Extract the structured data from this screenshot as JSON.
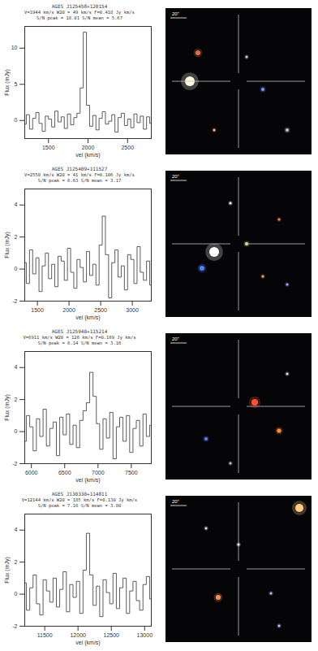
{
  "chart_data": [
    {
      "type": "line",
      "title": "AGES J125458+120154",
      "subtitle": [
        "V=1944 km/s W20 = 49 km/s F=0.418 Jy km/s",
        "S/N peak = 18.01 S/N mean = 5.67"
      ],
      "x_label": "vel (km/s)",
      "y_label": "Flux (mJy)",
      "color": "#333333",
      "line_style": "step",
      "annotations": [
        "20\""
      ],
      "x": [
        1200,
        1240,
        1280,
        1320,
        1360,
        1400,
        1440,
        1480,
        1520,
        1560,
        1600,
        1640,
        1680,
        1720,
        1760,
        1800,
        1840,
        1880,
        1920,
        1960,
        2000,
        2040,
        2080,
        2120,
        2160,
        2200,
        2240,
        2280,
        2320,
        2360,
        2400,
        2440,
        2480,
        2520,
        2560,
        2600,
        2640,
        2680,
        2720,
        2760,
        2800
      ],
      "values": [
        -0.5,
        0.8,
        -1.2,
        0.3,
        1.1,
        -0.4,
        -1.5,
        0.6,
        0.2,
        -0.9,
        1.3,
        -0.2,
        0.5,
        -1.1,
        0.9,
        -0.6,
        0.4,
        1.0,
        4.5,
        12.2,
        2.1,
        -0.8,
        0.7,
        -1.3,
        0.3,
        1.2,
        -0.5,
        -0.1,
        0.8,
        -1.6,
        0.4,
        1.0,
        -0.7,
        0.2,
        -1.0,
        0.9,
        -0.3,
        0.6,
        -1.2,
        0.5,
        -0.4
      ],
      "xlim": [
        1200,
        2800
      ],
      "xticks": [
        1500,
        2000,
        2500
      ],
      "ylim": [
        -2.5,
        13
      ],
      "yticks": [
        0,
        5,
        10
      ],
      "grid": false
    },
    {
      "type": "line",
      "title": "AGES J125409+111527",
      "subtitle": [
        "V=2550 km/s W20 = 41 km/s F=0.106 Jy km/s",
        "S/N peak = 6.63 S/N mean = 3.17"
      ],
      "x_label": "vel (km/s)",
      "y_label": "Flux (mJy)",
      "color": "#333333",
      "line_style": "step",
      "annotations": [
        "20\""
      ],
      "x": [
        1300,
        1350,
        1400,
        1450,
        1500,
        1550,
        1600,
        1650,
        1700,
        1750,
        1800,
        1850,
        1900,
        1950,
        2000,
        2050,
        2100,
        2150,
        2200,
        2250,
        2300,
        2350,
        2400,
        2450,
        2500,
        2550,
        2600,
        2650,
        2700,
        2750,
        2800,
        2850,
        2900,
        2950,
        3000,
        3050,
        3100,
        3150,
        3200,
        3250,
        3300
      ],
      "values": [
        0.4,
        -0.9,
        1.2,
        -0.3,
        0.7,
        -1.4,
        0.2,
        1.0,
        -0.6,
        0.3,
        -1.1,
        0.8,
        0.5,
        -0.7,
        1.3,
        -0.2,
        -1.2,
        0.6,
        0.1,
        -0.8,
        1.1,
        -0.4,
        0.3,
        -1.0,
        1.5,
        3.3,
        0.9,
        -1.8,
        0.4,
        1.2,
        -0.5,
        0.2,
        -1.3,
        0.9,
        0.6,
        -0.9,
        1.4,
        -0.2,
        -0.7,
        0.5,
        -1.0
      ],
      "xlim": [
        1300,
        3300
      ],
      "xticks": [
        1500,
        2000,
        2500,
        3000
      ],
      "ylim": [
        -2,
        5
      ],
      "yticks": [
        -2,
        0,
        2,
        4
      ],
      "grid": false
    },
    {
      "type": "line",
      "title": "AGES J125940+115214",
      "subtitle": [
        "V=6911 km/s W20 = 126 km/s F=0.169 Jy km/s",
        "S/N peak = 6.14 S/N mean = 3.16"
      ],
      "x_label": "vel (km/s)",
      "y_label": "Flux (mJy)",
      "color": "#333333",
      "line_style": "step",
      "annotations": [
        "20\""
      ],
      "x": [
        5900,
        5950,
        6000,
        6050,
        6100,
        6150,
        6200,
        6250,
        6300,
        6350,
        6400,
        6450,
        6500,
        6550,
        6600,
        6650,
        6700,
        6750,
        6800,
        6850,
        6900,
        6950,
        7000,
        7050,
        7100,
        7150,
        7200,
        7250,
        7300,
        7350,
        7400,
        7450,
        7500,
        7550,
        7600,
        7650,
        7700,
        7750,
        7800
      ],
      "values": [
        -0.6,
        1.0,
        0.3,
        -1.2,
        0.8,
        -0.3,
        1.4,
        -0.9,
        0.2,
        0.6,
        -1.5,
        0.9,
        -0.2,
        1.1,
        -0.8,
        0.4,
        -1.0,
        0.7,
        1.3,
        1.8,
        3.7,
        2.2,
        0.5,
        -1.1,
        0.8,
        -0.4,
        1.2,
        -1.7,
        0.3,
        0.9,
        -0.6,
        1.0,
        -1.3,
        0.2,
        0.7,
        -0.9,
        1.1,
        -0.3,
        0.4
      ],
      "xlim": [
        5900,
        7800
      ],
      "xticks": [
        6000,
        6500,
        7000,
        7500
      ],
      "ylim": [
        -2,
        5
      ],
      "yticks": [
        -2,
        0,
        2,
        4
      ],
      "grid": false
    },
    {
      "type": "line",
      "title": "AGES J130330+114811",
      "subtitle": [
        "V=12144 km/s W20 = 185 km/s F=0.130 Jy km/s",
        "S/N peak = 7.16 S/N mean = 3.80"
      ],
      "x_label": "vel (km/s)",
      "y_label": "Flux (mJy)",
      "color": "#333333",
      "line_style": "step",
      "annotations": [
        "20\""
      ],
      "x": [
        11200,
        11250,
        11300,
        11350,
        11400,
        11450,
        11500,
        11550,
        11600,
        11650,
        11700,
        11750,
        11800,
        11850,
        11900,
        11950,
        12000,
        12050,
        12100,
        12150,
        12200,
        12250,
        12300,
        12350,
        12400,
        12450,
        12500,
        12550,
        12600,
        12650,
        12700,
        12750,
        12800,
        12850,
        12900,
        12950,
        13000,
        13050,
        13100
      ],
      "values": [
        0.7,
        -1.0,
        0.4,
        1.2,
        -0.6,
        -1.3,
        0.9,
        0.2,
        -0.5,
        1.0,
        -0.8,
        0.3,
        1.4,
        -1.1,
        0.6,
        -0.2,
        0.8,
        -1.2,
        1.5,
        3.8,
        1.2,
        -0.7,
        0.5,
        -1.4,
        0.9,
        0.1,
        -0.6,
        1.3,
        -0.9,
        0.4,
        1.0,
        -1.2,
        0.2,
        0.8,
        -0.4,
        -1.0,
        0.6,
        1.1,
        -0.3
      ],
      "xlim": [
        11200,
        13100
      ],
      "xticks": [
        11500,
        12000,
        12500,
        13000
      ],
      "ylim": [
        -2,
        5
      ],
      "yticks": [
        -2,
        0,
        2,
        4
      ],
      "grid": false
    }
  ]
}
